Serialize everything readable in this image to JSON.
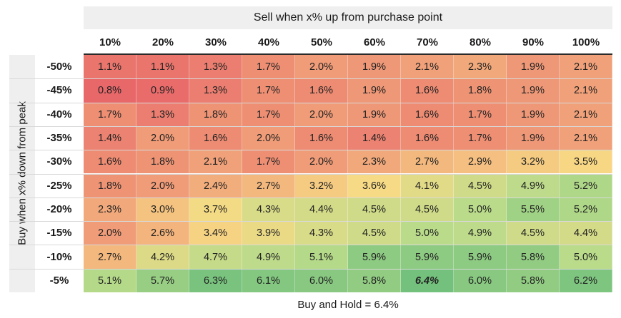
{
  "chart_data": {
    "type": "heatmap",
    "title": "Sell when x% up from purchase point",
    "ylabel": "Buy when x% down from peak",
    "x_categories": [
      "10%",
      "20%",
      "30%",
      "40%",
      "50%",
      "60%",
      "70%",
      "80%",
      "90%",
      "100%"
    ],
    "y_categories": [
      "-50%",
      "-45%",
      "-40%",
      "-35%",
      "-30%",
      "-25%",
      "-20%",
      "-15%",
      "-10%",
      "-5%"
    ],
    "values": [
      [
        1.1,
        1.1,
        1.3,
        1.7,
        2.0,
        1.9,
        2.1,
        2.3,
        1.9,
        2.1
      ],
      [
        0.8,
        0.9,
        1.3,
        1.7,
        1.6,
        1.9,
        1.6,
        1.8,
        1.9,
        2.1
      ],
      [
        1.7,
        1.3,
        1.8,
        1.7,
        2.0,
        1.9,
        1.6,
        1.7,
        1.9,
        2.1
      ],
      [
        1.4,
        2.0,
        1.6,
        2.0,
        1.6,
        1.4,
        1.6,
        1.7,
        1.9,
        2.1
      ],
      [
        1.6,
        1.8,
        2.1,
        1.7,
        2.0,
        2.3,
        2.7,
        2.9,
        3.2,
        3.5
      ],
      [
        1.8,
        2.0,
        2.4,
        2.7,
        3.2,
        3.6,
        4.1,
        4.5,
        4.9,
        5.2
      ],
      [
        2.3,
        3.0,
        3.7,
        4.3,
        4.4,
        4.5,
        4.5,
        5.0,
        5.5,
        5.2
      ],
      [
        2.0,
        2.6,
        3.4,
        3.9,
        4.3,
        4.5,
        5.0,
        4.9,
        4.5,
        4.4
      ],
      [
        2.7,
        4.2,
        4.7,
        4.9,
        5.1,
        5.9,
        5.9,
        5.9,
        5.8,
        5.0
      ],
      [
        5.1,
        5.7,
        6.3,
        6.1,
        6.0,
        5.8,
        6.4,
        6.0,
        5.8,
        6.2
      ]
    ],
    "value_labels": [
      [
        "1.1%",
        "1.1%",
        "1.3%",
        "1.7%",
        "2.0%",
        "1.9%",
        "2.1%",
        "2.3%",
        "1.9%",
        "2.1%"
      ],
      [
        "0.8%",
        "0.9%",
        "1.3%",
        "1.7%",
        "1.6%",
        "1.9%",
        "1.6%",
        "1.8%",
        "1.9%",
        "2.1%"
      ],
      [
        "1.7%",
        "1.3%",
        "1.8%",
        "1.7%",
        "2.0%",
        "1.9%",
        "1.6%",
        "1.7%",
        "1.9%",
        "2.1%"
      ],
      [
        "1.4%",
        "2.0%",
        "1.6%",
        "2.0%",
        "1.6%",
        "1.4%",
        "1.6%",
        "1.7%",
        "1.9%",
        "2.1%"
      ],
      [
        "1.6%",
        "1.8%",
        "2.1%",
        "1.7%",
        "2.0%",
        "2.3%",
        "2.7%",
        "2.9%",
        "3.2%",
        "3.5%"
      ],
      [
        "1.8%",
        "2.0%",
        "2.4%",
        "2.7%",
        "3.2%",
        "3.6%",
        "4.1%",
        "4.5%",
        "4.9%",
        "5.2%"
      ],
      [
        "2.3%",
        "3.0%",
        "3.7%",
        "4.3%",
        "4.4%",
        "4.5%",
        "4.5%",
        "5.0%",
        "5.5%",
        "5.2%"
      ],
      [
        "2.0%",
        "2.6%",
        "3.4%",
        "3.9%",
        "4.3%",
        "4.5%",
        "5.0%",
        "4.9%",
        "4.5%",
        "4.4%"
      ],
      [
        "2.7%",
        "4.2%",
        "4.7%",
        "4.9%",
        "5.1%",
        "5.9%",
        "5.9%",
        "5.9%",
        "5.8%",
        "5.0%"
      ],
      [
        "5.1%",
        "5.7%",
        "6.3%",
        "6.1%",
        "6.0%",
        "5.8%",
        "6.4%",
        "6.0%",
        "5.8%",
        "6.2%"
      ]
    ],
    "highlight_cell": {
      "row": 9,
      "col": 6
    },
    "footnote": "Buy and Hold = 6.4%",
    "color_scale": {
      "min": 0.8,
      "max": 6.4,
      "stops": [
        "#e8686a",
        "#f1a57a",
        "#f7da85",
        "#b9db8a",
        "#74c17d"
      ]
    }
  }
}
